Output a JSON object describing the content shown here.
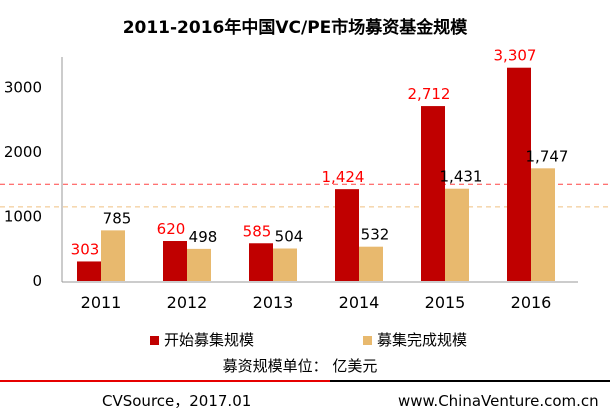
{
  "chart_data": {
    "type": "bar",
    "title": "2011-2016年中国VC/PE市场募资基金规模",
    "categories": [
      "2011",
      "2012",
      "2013",
      "2014",
      "2015",
      "2016"
    ],
    "series": [
      {
        "name": "开始募集规模",
        "values": [
          303,
          620,
          585,
          1424,
          2712,
          3307
        ],
        "color": "#c00000",
        "label_color": "#ff0000"
      },
      {
        "name": "募集完成规模",
        "values": [
          785,
          498,
          504,
          532,
          1431,
          1747
        ],
        "color": "#e8b96e",
        "label_color": "#000000"
      }
    ],
    "value_labels": [
      [
        "303",
        "620",
        "585",
        "1,424",
        "2,712",
        "3,307"
      ],
      [
        "785",
        "498",
        "504",
        "532",
        "1,431",
        "1,747"
      ]
    ],
    "y_ticks": [
      "0",
      "1000",
      "2000",
      "3000"
    ],
    "ylim": [
      0,
      3500
    ],
    "grid": false,
    "legend_position": "bottom",
    "reference_lines": [
      {
        "value": 1500,
        "color": "#ff4444",
        "style": "dashed"
      },
      {
        "value": 1150,
        "color": "#f0c080",
        "style": "dashed"
      }
    ],
    "unit_note": "募资规模单位： 亿美元"
  },
  "footer": {
    "source": "CVSource，2017.01",
    "website": "www.ChinaVenture.com.cn"
  }
}
